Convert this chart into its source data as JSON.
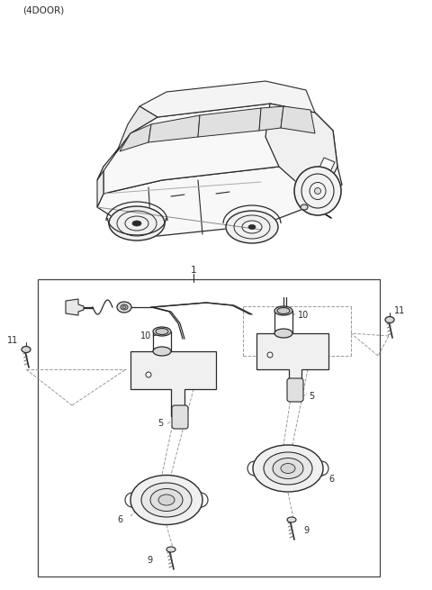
{
  "bg": "#ffffff",
  "lc": "#2a2a2a",
  "gc": "#aaaaaa",
  "title": "(4DOOR)",
  "label1": "1",
  "label5": "5",
  "label6": "6",
  "label9": "9",
  "label10": "10",
  "label11": "11"
}
